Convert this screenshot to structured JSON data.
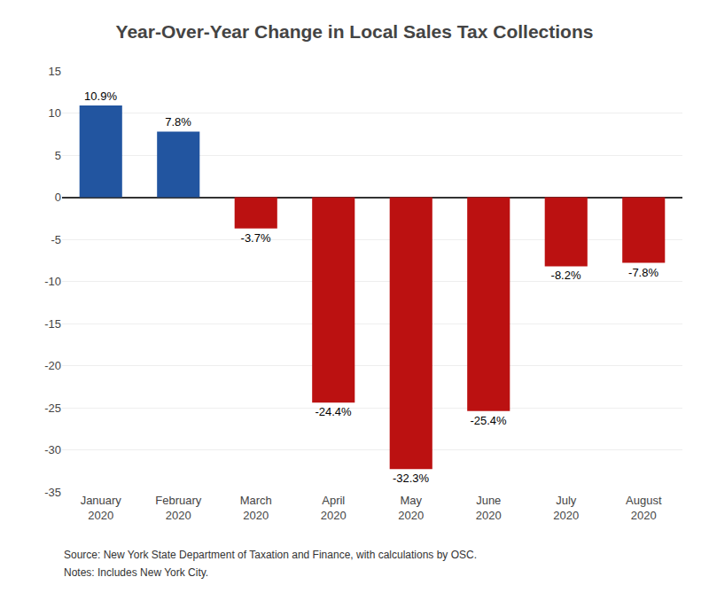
{
  "chart_data": {
    "type": "bar",
    "title": "Year-Over-Year Change in Local Sales Tax Collections",
    "categories": [
      "January\n2020",
      "February\n2020",
      "March\n2020",
      "April\n2020",
      "May\n2020",
      "June\n2020",
      "July\n2020",
      "August\n2020"
    ],
    "values": [
      10.9,
      7.8,
      -3.7,
      -24.4,
      -32.3,
      -25.4,
      -8.2,
      -7.8
    ],
    "value_labels": [
      "10.9%",
      "7.8%",
      "-3.7%",
      "-24.4%",
      "-32.3%",
      "-25.4%",
      "-8.2%",
      "-7.8%"
    ],
    "data_labels": true,
    "colors": [
      "#2255a0",
      "#2255a0",
      "#bb1111",
      "#bb1111",
      "#bb1111",
      "#bb1111",
      "#bb1111",
      "#bb1111"
    ],
    "ylim": [
      -35,
      15
    ],
    "yticks": [
      -35,
      -30,
      -25,
      -20,
      -15,
      -10,
      -5,
      0,
      5,
      10,
      15
    ],
    "grid": true,
    "annotations": [
      "Source: New York State Department of Taxation and Finance, with calculations by OSC.",
      "Notes: Includes New York City."
    ]
  }
}
